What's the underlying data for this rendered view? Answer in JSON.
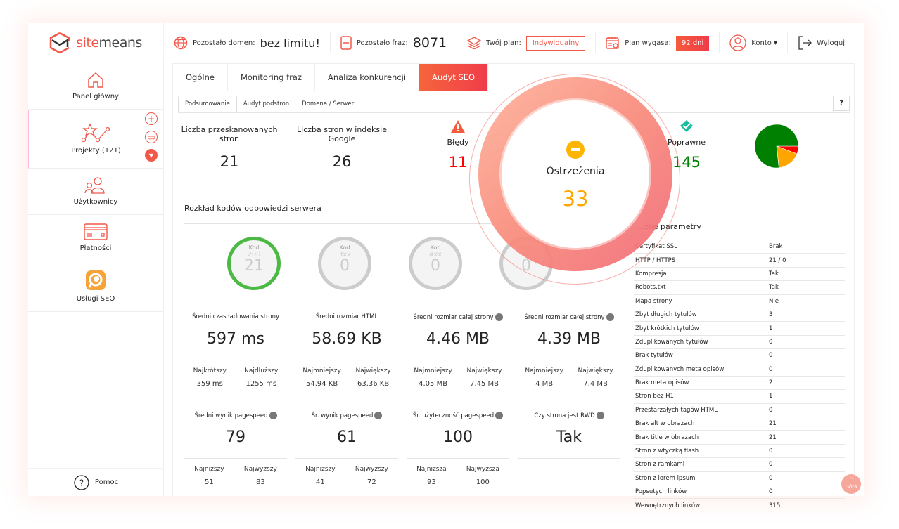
{
  "brand": {
    "name_prefix": "site",
    "name_suffix": "means"
  },
  "header": {
    "domains_label": "Pozostało domen:",
    "domains_value": "bez limitu!",
    "phrases_label": "Pozostało fraz:",
    "phrases_value": "8071",
    "plan_label": "Twój plan:",
    "plan_value": "Indywidualny",
    "expires_label": "Plan wygasa:",
    "expires_value": "92 dni",
    "account_label": "Konto ▾",
    "logout_label": "Wyloguj"
  },
  "sidebar": {
    "items": [
      {
        "label": "Panel główny"
      },
      {
        "label": "Projekty (121)"
      },
      {
        "label": "Użytkownicy"
      },
      {
        "label": "Płatności"
      },
      {
        "label": "Usługi SEO"
      }
    ],
    "help_label": "Pomoc"
  },
  "tabs": [
    "Ogólne",
    "Monitoring fraz",
    "Analiza konkurencji",
    "Audyt SEO"
  ],
  "subtabs": [
    "Podsumowanie",
    "Audyt podstron",
    "Domena / Serwer"
  ],
  "help_button": "?",
  "stats": {
    "scanned_label": "Liczba przeskanowanych stron",
    "scanned_value": "21",
    "indexed_label": "Liczba stron w indeksie Google",
    "indexed_value": "26",
    "errors_label": "Błędy",
    "errors_value": "11",
    "warnings_label": "Ostrzeżenia",
    "warnings_value": "33",
    "correct_label": "Poprawne",
    "correct_value": "145"
  },
  "colors": {
    "accent": "#f2584a",
    "errors": "#ff0000",
    "warnings": "#ffa500",
    "correct": "#008000"
  },
  "chart_data": {
    "type": "pie",
    "categories": [
      "Błędy",
      "Ostrzeżenia",
      "Poprawne"
    ],
    "values": [
      11,
      33,
      145
    ],
    "colors": [
      "#ff0000",
      "#ffa500",
      "#008000"
    ]
  },
  "codes": {
    "title": "Rozkład kodów odpowiedzi serwera",
    "items": [
      {
        "label": "Kod",
        "code": "200",
        "value": "21",
        "color": "#4cb944"
      },
      {
        "label": "Kod",
        "code": "3xx",
        "value": "0",
        "color": "#cccccc"
      },
      {
        "label": "Kod",
        "code": "4xx",
        "value": "0",
        "color": "#cccccc"
      },
      {
        "label": "Kod",
        "code": "5xx",
        "value": "0",
        "color": "#cccccc"
      }
    ]
  },
  "metrics": [
    {
      "title": "Średni czas ładowania strony",
      "value": "597 ms",
      "min_label": "Najkrótszy",
      "min": "359 ms",
      "max_label": "Najdłuższy",
      "max": "1255 ms"
    },
    {
      "title": "Średni rozmiar HTML",
      "value": "58.69 KB",
      "min_label": "Najmniejszy",
      "min": "54.94 KB",
      "max_label": "Największy",
      "max": "63.36 KB"
    },
    {
      "title": "Średni rozmiar całej strony",
      "device": "desktop-icon",
      "value": "4.46 MB",
      "min_label": "Najmniejszy",
      "min": "4.05 MB",
      "max_label": "Największy",
      "max": "7.45 MB"
    },
    {
      "title": "Średni rozmiar całej strony",
      "device": "mobile-icon",
      "value": "4.39 MB",
      "min_label": "Najmniejszy",
      "min": "4 MB",
      "max_label": "Największy",
      "max": "7.4 MB"
    },
    {
      "title": "Średni wynik pagespeed",
      "device": "desktop-icon",
      "value": "79",
      "min_label": "Najniższy",
      "min": "51",
      "max_label": "Najwyższy",
      "max": "83"
    },
    {
      "title": "Śr. wynik pagespeed",
      "device": "mobile-icon",
      "value": "61",
      "min_label": "Najniższy",
      "min": "41",
      "max_label": "Najwyższy",
      "max": "72"
    },
    {
      "title": "Śr. użyteczność pagespeed",
      "device": "mobile-icon",
      "value": "100",
      "min_label": "Najniższa",
      "min": "93",
      "max_label": "Najwyższa",
      "max": "100"
    },
    {
      "title": "Czy strona jest RWD",
      "device": "mobile-icon",
      "value": "Tak"
    }
  ],
  "params": {
    "title": "…zne parametry",
    "rows": [
      [
        "Certyfikat SSL",
        "Brak"
      ],
      [
        "HTTP / HTTPS",
        "21 / 0"
      ],
      [
        "Kompresja",
        "Tak"
      ],
      [
        "Robots.txt",
        "Tak"
      ],
      [
        "Mapa strony",
        "Nie"
      ],
      [
        "Zbyt długich tytułów",
        "3"
      ],
      [
        "Zbyt krótkich tytułów",
        "1"
      ],
      [
        "Zduplikowanych tytułów",
        "0"
      ],
      [
        "Brak tytułów",
        "0"
      ],
      [
        "Zduplikowanych meta opisów",
        "0"
      ],
      [
        "Brak meta opisów",
        "2"
      ],
      [
        "Stron bez H1",
        "1"
      ],
      [
        "Przestarzałych tagów HTML",
        "0"
      ],
      [
        "Brak alt w obrazach",
        "21"
      ],
      [
        "Brak title w obrazach",
        "21"
      ],
      [
        "Stron z wtyczką flash",
        "0"
      ],
      [
        "Stron z ramkami",
        "0"
      ],
      [
        "Stron z lorem ipsum",
        "0"
      ],
      [
        "Popsutych linków",
        "0"
      ],
      [
        "Wewnętrznych linków",
        "315"
      ]
    ]
  },
  "goto_top": "Góra"
}
